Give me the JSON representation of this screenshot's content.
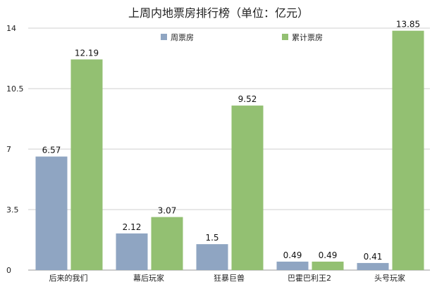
{
  "chart_data": {
    "type": "bar",
    "title": "上周内地票房排行榜（单位：亿元）",
    "categories": [
      "后来的我们",
      "幕后玩家",
      "狂暴巨兽",
      "巴霍巴利王2",
      "头号玩家"
    ],
    "series": [
      {
        "name": "周票房",
        "values": [
          6.57,
          2.12,
          1.5,
          0.49,
          0.41
        ],
        "color": "#8fa5c2"
      },
      {
        "name": "累计票房",
        "values": [
          12.19,
          3.07,
          9.52,
          0.49,
          13.85
        ],
        "color": "#93c072"
      }
    ],
    "data_labels": [
      [
        "6.57",
        "2.12",
        "1.5",
        "0.49",
        "0.41"
      ],
      [
        "12.19",
        "3.07",
        "9.52",
        "0.49",
        "13.85"
      ]
    ],
    "ylim": [
      0,
      14
    ],
    "yticks": [
      0,
      3.5,
      7,
      10.5,
      14
    ],
    "ytick_labels": [
      "0",
      "3.5",
      "7",
      "10.5",
      "14"
    ],
    "grid": true,
    "legend_position": "top"
  }
}
